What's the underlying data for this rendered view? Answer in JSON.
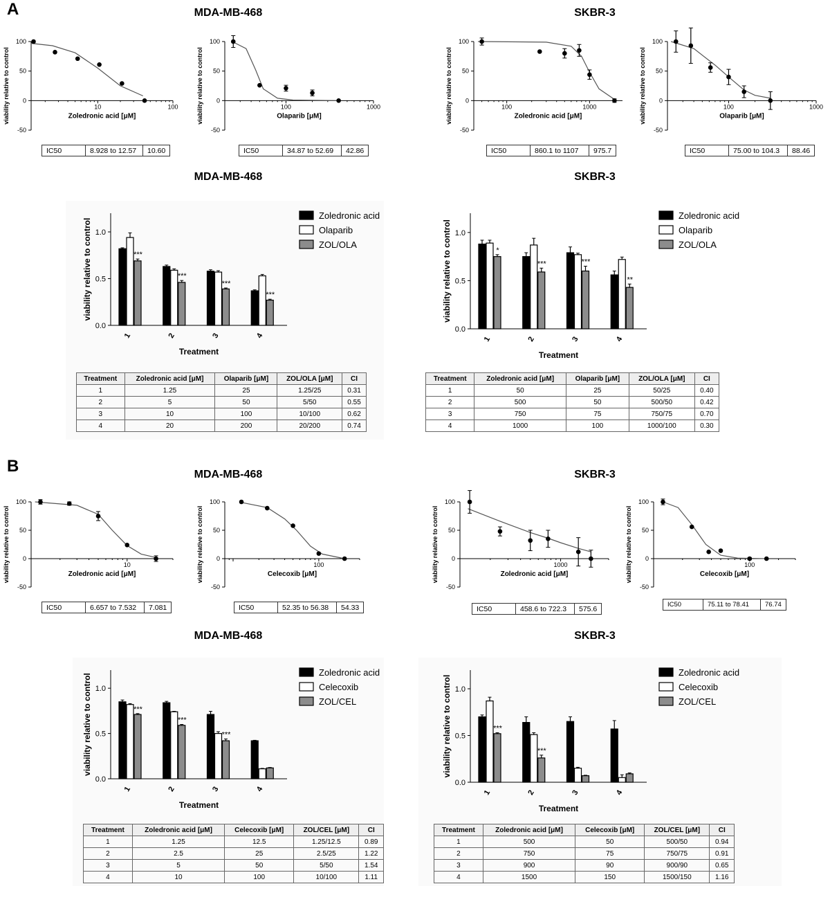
{
  "panels": [
    {
      "id": "A",
      "label": "A"
    },
    {
      "id": "B",
      "label": "B"
    }
  ],
  "titles": {
    "a_dose_mda": "MDA-MB-468",
    "a_dose_skbr": "SKBR-3",
    "a_bar_mda": "MDA-MB-468",
    "a_bar_skbr": "SKBR-3",
    "b_dose_mda": "MDA-MB-468",
    "b_dose_skbr": "SKBR-3",
    "b_bar_mda": "MDA-MB-468",
    "b_bar_skbr": "SKBR-3"
  },
  "colors": {
    "zol": "#000000",
    "drug2": "#ffffff",
    "combo": "#8c8c8c",
    "curve": "#555555",
    "text": "#000000"
  },
  "ic50_tables": [
    {
      "label": "IC50",
      "range": "8.928 to 12.57",
      "value": "10.60"
    },
    {
      "label": "IC50",
      "range": "34.87 to 52.69",
      "value": "42.86"
    },
    {
      "label": "IC50",
      "range": "860.1 to 1107",
      "value": "975.7"
    },
    {
      "label": "IC50",
      "range": "75.00 to 104.3",
      "value": "88.46"
    },
    {
      "label": "IC50",
      "range": "6.657 to 7.532",
      "value": "7.081"
    },
    {
      "label": "IC50",
      "range": "52.35 to 56.38",
      "value": "54.33"
    },
    {
      "label": "IC50",
      "range": "458.6 to 722.3",
      "value": "575.6"
    },
    {
      "label": "IC50",
      "range": "75.11 to 78.41",
      "value": "76.74"
    }
  ],
  "combo_tables": [
    {
      "headers": [
        "Treatment",
        "Zoledronic acid [μM]",
        "Olaparib [μM]",
        "ZOL/OLA [μM]",
        "CI"
      ],
      "rows": [
        [
          "1",
          "1.25",
          "25",
          "1.25/25",
          "0.31"
        ],
        [
          "2",
          "5",
          "50",
          "5/50",
          "0.55"
        ],
        [
          "3",
          "10",
          "100",
          "10/100",
          "0.62"
        ],
        [
          "4",
          "20",
          "200",
          "20/200",
          "0.74"
        ]
      ]
    },
    {
      "headers": [
        "Treatment",
        "Zoledronic acid [μM]",
        "Olaparib [μM]",
        "ZOL/OLA [μM]",
        "CI"
      ],
      "rows": [
        [
          "1",
          "50",
          "25",
          "50/25",
          "0.40"
        ],
        [
          "2",
          "500",
          "50",
          "500/50",
          "0.42"
        ],
        [
          "3",
          "750",
          "75",
          "750/75",
          "0.70"
        ],
        [
          "4",
          "1000",
          "100",
          "1000/100",
          "0.30"
        ]
      ]
    },
    {
      "headers": [
        "Treatment",
        "Zoledronic acid [μM]",
        "Celecoxib [μM]",
        "ZOL/CEL [μM]",
        "CI"
      ],
      "rows": [
        [
          "1",
          "1.25",
          "12.5",
          "1.25/12.5",
          "0.89"
        ],
        [
          "2",
          "2.5",
          "25",
          "2.5/25",
          "1.22"
        ],
        [
          "3",
          "5",
          "50",
          "5/50",
          "1.54"
        ],
        [
          "4",
          "10",
          "100",
          "10/100",
          "1.11"
        ]
      ]
    },
    {
      "headers": [
        "Treatment",
        "Zoledronic acid [μM]",
        "Celecoxib [μM]",
        "ZOL/CEL [μM]",
        "CI"
      ],
      "rows": [
        [
          "1",
          "500",
          "50",
          "500/50",
          "0.94"
        ],
        [
          "2",
          "750",
          "75",
          "750/75",
          "0.91"
        ],
        [
          "3",
          "900",
          "90",
          "900/90",
          "0.65"
        ],
        [
          "4",
          "1500",
          "150",
          "1500/150",
          "1.16"
        ]
      ]
    }
  ],
  "chart_data": [
    {
      "id": "A-dose-1",
      "type": "scatter",
      "xscale": "log",
      "title": "",
      "xlabel": "Zoledronic acid [μM]",
      "ylabel": "viability relative to control",
      "xlim": [
        1.3,
        100
      ],
      "ylim": [
        -50,
        100
      ],
      "yticks": [
        -50,
        0,
        50,
        100
      ],
      "xticks": [
        10,
        100
      ],
      "xticklabels": [
        "10",
        "100"
      ],
      "points": [
        [
          1.4,
          100,
          0
        ],
        [
          2.7,
          82,
          0
        ],
        [
          5.4,
          71,
          0
        ],
        [
          10.5,
          61,
          0
        ],
        [
          21,
          29,
          0
        ],
        [
          42,
          0,
          0
        ]
      ],
      "curve": [
        [
          1.3,
          97
        ],
        [
          2.5,
          93
        ],
        [
          5,
          81
        ],
        [
          10,
          55
        ],
        [
          20,
          25
        ],
        [
          40,
          8
        ]
      ]
    },
    {
      "id": "A-dose-2",
      "type": "scatter",
      "xscale": "log",
      "title": "",
      "xlabel": "Olaparib [μM]",
      "ylabel": "viability relative to control",
      "xlim": [
        20,
        1000
      ],
      "ylim": [
        -50,
        100
      ],
      "yticks": [
        -50,
        0,
        50,
        100
      ],
      "xticks": [
        100,
        1000
      ],
      "xticklabels": [
        "100",
        "1000"
      ],
      "points": [
        [
          25,
          100,
          10
        ],
        [
          50,
          26,
          0
        ],
        [
          100,
          21,
          5
        ],
        [
          200,
          13,
          5
        ],
        [
          400,
          0,
          0
        ]
      ],
      "curve": [
        [
          25,
          99
        ],
        [
          35,
          88
        ],
        [
          45,
          52
        ],
        [
          55,
          20
        ],
        [
          80,
          4
        ],
        [
          120,
          1
        ],
        [
          400,
          0
        ]
      ]
    },
    {
      "id": "A-dose-3",
      "type": "scatter",
      "xscale": "log",
      "title": "",
      "xlabel": "Zoledronic acid [μM]",
      "ylabel": "viability relative to control",
      "xlim": [
        40,
        2500
      ],
      "ylim": [
        -50,
        100
      ],
      "yticks": [
        -50,
        0,
        50,
        100
      ],
      "xticks": [
        100,
        1000
      ],
      "xticklabels": [
        "100",
        "1000"
      ],
      "points": [
        [
          50,
          100,
          6
        ],
        [
          250,
          83,
          0
        ],
        [
          500,
          80,
          8
        ],
        [
          750,
          85,
          10
        ],
        [
          1000,
          44,
          8
        ],
        [
          2000,
          0,
          3
        ]
      ],
      "curve": [
        [
          45,
          100
        ],
        [
          300,
          99
        ],
        [
          600,
          92
        ],
        [
          800,
          75
        ],
        [
          1000,
          48
        ],
        [
          1300,
          20
        ],
        [
          2000,
          2
        ]
      ]
    },
    {
      "id": "A-dose-4",
      "type": "scatter",
      "xscale": "log",
      "title": "",
      "xlabel": "Olaparib [μM]",
      "ylabel": "viability relative to control",
      "xlim": [
        20,
        1000
      ],
      "ylim": [
        -50,
        100
      ],
      "yticks": [
        -50,
        0,
        50,
        100
      ],
      "xticks": [
        100,
        1000
      ],
      "xticklabels": [
        "100",
        "1000"
      ],
      "points": [
        [
          25,
          100,
          18
        ],
        [
          37,
          93,
          30
        ],
        [
          62,
          56,
          8
        ],
        [
          100,
          40,
          13
        ],
        [
          150,
          15,
          10
        ],
        [
          300,
          0,
          15
        ]
      ],
      "curve": [
        [
          22,
          100
        ],
        [
          40,
          88
        ],
        [
          70,
          60
        ],
        [
          100,
          40
        ],
        [
          150,
          18
        ],
        [
          200,
          9
        ],
        [
          300,
          4
        ]
      ]
    },
    {
      "id": "A-bar-1",
      "type": "bar",
      "xlabel": "Treatment",
      "ylabel": "viability relative to control",
      "ylim": [
        0,
        1.2
      ],
      "yticks": [
        0,
        0.5,
        1.0
      ],
      "ytickLabels": [
        "0.0",
        "0.5",
        "1.0"
      ],
      "categories": [
        "1",
        "2",
        "3",
        "4"
      ],
      "series": [
        {
          "name": "Zoledronic acid",
          "values": [
            0.82,
            0.63,
            0.58,
            0.37
          ],
          "errors": [
            0.01,
            0.015,
            0.015,
            0.01
          ]
        },
        {
          "name": "Olaparib",
          "values": [
            0.94,
            0.59,
            0.57,
            0.53
          ],
          "errors": [
            0.05,
            0.015,
            0.015,
            0.015
          ]
        },
        {
          "name": "ZOL/OLA",
          "values": [
            0.69,
            0.46,
            0.39,
            0.27
          ],
          "errors": [
            0.02,
            0.02,
            0.01,
            0.01
          ]
        }
      ],
      "annotations": [
        "***",
        "***",
        "***",
        "***"
      ]
    },
    {
      "id": "A-bar-2",
      "type": "bar",
      "xlabel": "Treatment",
      "ylabel": "viability relative to control",
      "ylim": [
        0,
        1.2
      ],
      "yticks": [
        0,
        0.5,
        1.0
      ],
      "ytickLabels": [
        "0.0",
        "0.5",
        "1.0"
      ],
      "categories": [
        "1",
        "2",
        "3",
        "4"
      ],
      "series": [
        {
          "name": "Zoledronic acid",
          "values": [
            0.88,
            0.75,
            0.79,
            0.56
          ],
          "errors": [
            0.04,
            0.04,
            0.06,
            0.04
          ]
        },
        {
          "name": "Olaparib",
          "values": [
            0.89,
            0.87,
            0.77,
            0.72
          ],
          "errors": [
            0.03,
            0.07,
            0.015,
            0.025
          ]
        },
        {
          "name": "ZOL/OLA",
          "values": [
            0.75,
            0.59,
            0.6,
            0.43
          ],
          "errors": [
            0.02,
            0.04,
            0.05,
            0.035
          ]
        }
      ],
      "annotations": [
        "*",
        "***",
        "***",
        "**"
      ]
    },
    {
      "id": "B-dose-1",
      "type": "scatter",
      "xscale": "log",
      "title": "",
      "xlabel": "Zoledronic acid [μM]",
      "ylabel": "viability relative to control",
      "xlim": [
        1,
        30
      ],
      "ylim": [
        -50,
        100
      ],
      "yticks": [
        -50,
        0,
        50,
        100
      ],
      "xticks": [
        10
      ],
      "xticklabels": [
        "10"
      ],
      "points": [
        [
          1.25,
          100,
          4
        ],
        [
          2.5,
          97,
          3
        ],
        [
          5,
          75,
          8
        ],
        [
          10,
          24,
          0
        ],
        [
          20,
          0,
          5
        ]
      ],
      "curve": [
        [
          1.1,
          100
        ],
        [
          3,
          94
        ],
        [
          5,
          78
        ],
        [
          7,
          50
        ],
        [
          10,
          23
        ],
        [
          14,
          8
        ],
        [
          20,
          2
        ]
      ]
    },
    {
      "id": "B-dose-2",
      "type": "scatter",
      "xscale": "log",
      "title": "",
      "xlabel": "Celecoxib [μM]",
      "ylabel": "viability relative to control",
      "xlim": [
        8,
        300
      ],
      "ylim": [
        -50,
        100
      ],
      "yticks": [
        -50,
        0,
        50,
        100
      ],
      "xticks": [
        100
      ],
      "xticklabels": [
        "100"
      ],
      "points": [
        [
          12.5,
          100,
          0
        ],
        [
          25,
          89,
          0
        ],
        [
          50,
          58,
          0
        ],
        [
          100,
          9,
          0
        ],
        [
          200,
          0,
          0
        ]
      ],
      "curve": [
        [
          12.5,
          99
        ],
        [
          25,
          90
        ],
        [
          40,
          70
        ],
        [
          55,
          50
        ],
        [
          80,
          22
        ],
        [
          110,
          8
        ],
        [
          200,
          0
        ]
      ]
    },
    {
      "id": "B-dose-3",
      "type": "scatter",
      "xscale": "log",
      "title": "",
      "xlabel": "Zoledronic acid [μM]",
      "ylabel": "viability relative to control",
      "xlim": [
        100,
        3000
      ],
      "ylim": [
        -50,
        100
      ],
      "yticks": [
        -50,
        0,
        50,
        100
      ],
      "xticks": [
        1000
      ],
      "xticklabels": [
        "1000"
      ],
      "points": [
        [
          125,
          100,
          20
        ],
        [
          250,
          48,
          8
        ],
        [
          500,
          32,
          18
        ],
        [
          750,
          35,
          15
        ],
        [
          1500,
          12,
          25
        ],
        [
          2000,
          0,
          15
        ]
      ],
      "curve": [
        [
          120,
          88
        ],
        [
          250,
          66
        ],
        [
          500,
          46
        ],
        [
          750,
          36
        ],
        [
          1000,
          28
        ],
        [
          1500,
          18
        ],
        [
          2000,
          12
        ]
      ]
    },
    {
      "id": "B-dose-4",
      "type": "scatter",
      "xscale": "log",
      "title": "",
      "xlabel": "Celecoxib [μM]",
      "ylabel": "viability relative to control",
      "xlim": [
        10,
        300
      ],
      "ylim": [
        -50,
        100
      ],
      "yticks": [
        -50,
        0,
        50,
        100
      ],
      "xticks": [
        100
      ],
      "xticklabels": [
        "100"
      ],
      "points": [
        [
          12.5,
          100,
          5
        ],
        [
          25,
          56,
          0
        ],
        [
          37.5,
          12,
          0
        ],
        [
          50,
          14,
          0
        ],
        [
          100,
          0,
          2
        ],
        [
          150,
          0,
          0
        ]
      ],
      "curve": [
        [
          12.5,
          100
        ],
        [
          18,
          90
        ],
        [
          25,
          60
        ],
        [
          35,
          25
        ],
        [
          50,
          6
        ],
        [
          75,
          1
        ],
        [
          150,
          0
        ]
      ]
    },
    {
      "id": "B-bar-1",
      "type": "bar",
      "xlabel": "Treatment",
      "ylabel": "viability relative to control",
      "ylim": [
        0,
        1.2
      ],
      "yticks": [
        0,
        0.5,
        1.0
      ],
      "ytickLabels": [
        "0.0",
        "0.5",
        "1.0"
      ],
      "categories": [
        "1",
        "2",
        "3",
        "4"
      ],
      "series": [
        {
          "name": "Zoledronic acid",
          "values": [
            0.85,
            0.84,
            0.71,
            0.42
          ],
          "errors": [
            0.02,
            0.015,
            0.035,
            0.005
          ]
        },
        {
          "name": "Celecoxib",
          "values": [
            0.82,
            0.74,
            0.5,
            0.11
          ],
          "errors": [
            0.01,
            0.005,
            0.02,
            0.005
          ]
        },
        {
          "name": "ZOL/CEL",
          "values": [
            0.71,
            0.59,
            0.42,
            0.12
          ],
          "errors": [
            0.01,
            0.01,
            0.02,
            0.005
          ]
        }
      ],
      "annotations": [
        "***",
        "***",
        "***",
        ""
      ]
    },
    {
      "id": "B-bar-2",
      "type": "bar",
      "xlabel": "Treatment",
      "ylabel": "viability relative to control",
      "ylim": [
        0,
        1.2
      ],
      "yticks": [
        0,
        0.5,
        1.0
      ],
      "ytickLabels": [
        "0.0",
        "0.5",
        "1.0"
      ],
      "categories": [
        "1",
        "2",
        "3",
        "4"
      ],
      "series": [
        {
          "name": "Zoledronic acid",
          "values": [
            0.7,
            0.64,
            0.65,
            0.57
          ],
          "errors": [
            0.02,
            0.06,
            0.05,
            0.09
          ]
        },
        {
          "name": "Celecoxib",
          "values": [
            0.87,
            0.51,
            0.15,
            0.05
          ],
          "errors": [
            0.04,
            0.02,
            0.01,
            0.03
          ]
        },
        {
          "name": "ZOL/CEL",
          "values": [
            0.52,
            0.26,
            0.07,
            0.09
          ],
          "errors": [
            0.01,
            0.03,
            0.005,
            0.01
          ]
        }
      ],
      "annotations": [
        "***",
        "***",
        "",
        ""
      ]
    }
  ]
}
